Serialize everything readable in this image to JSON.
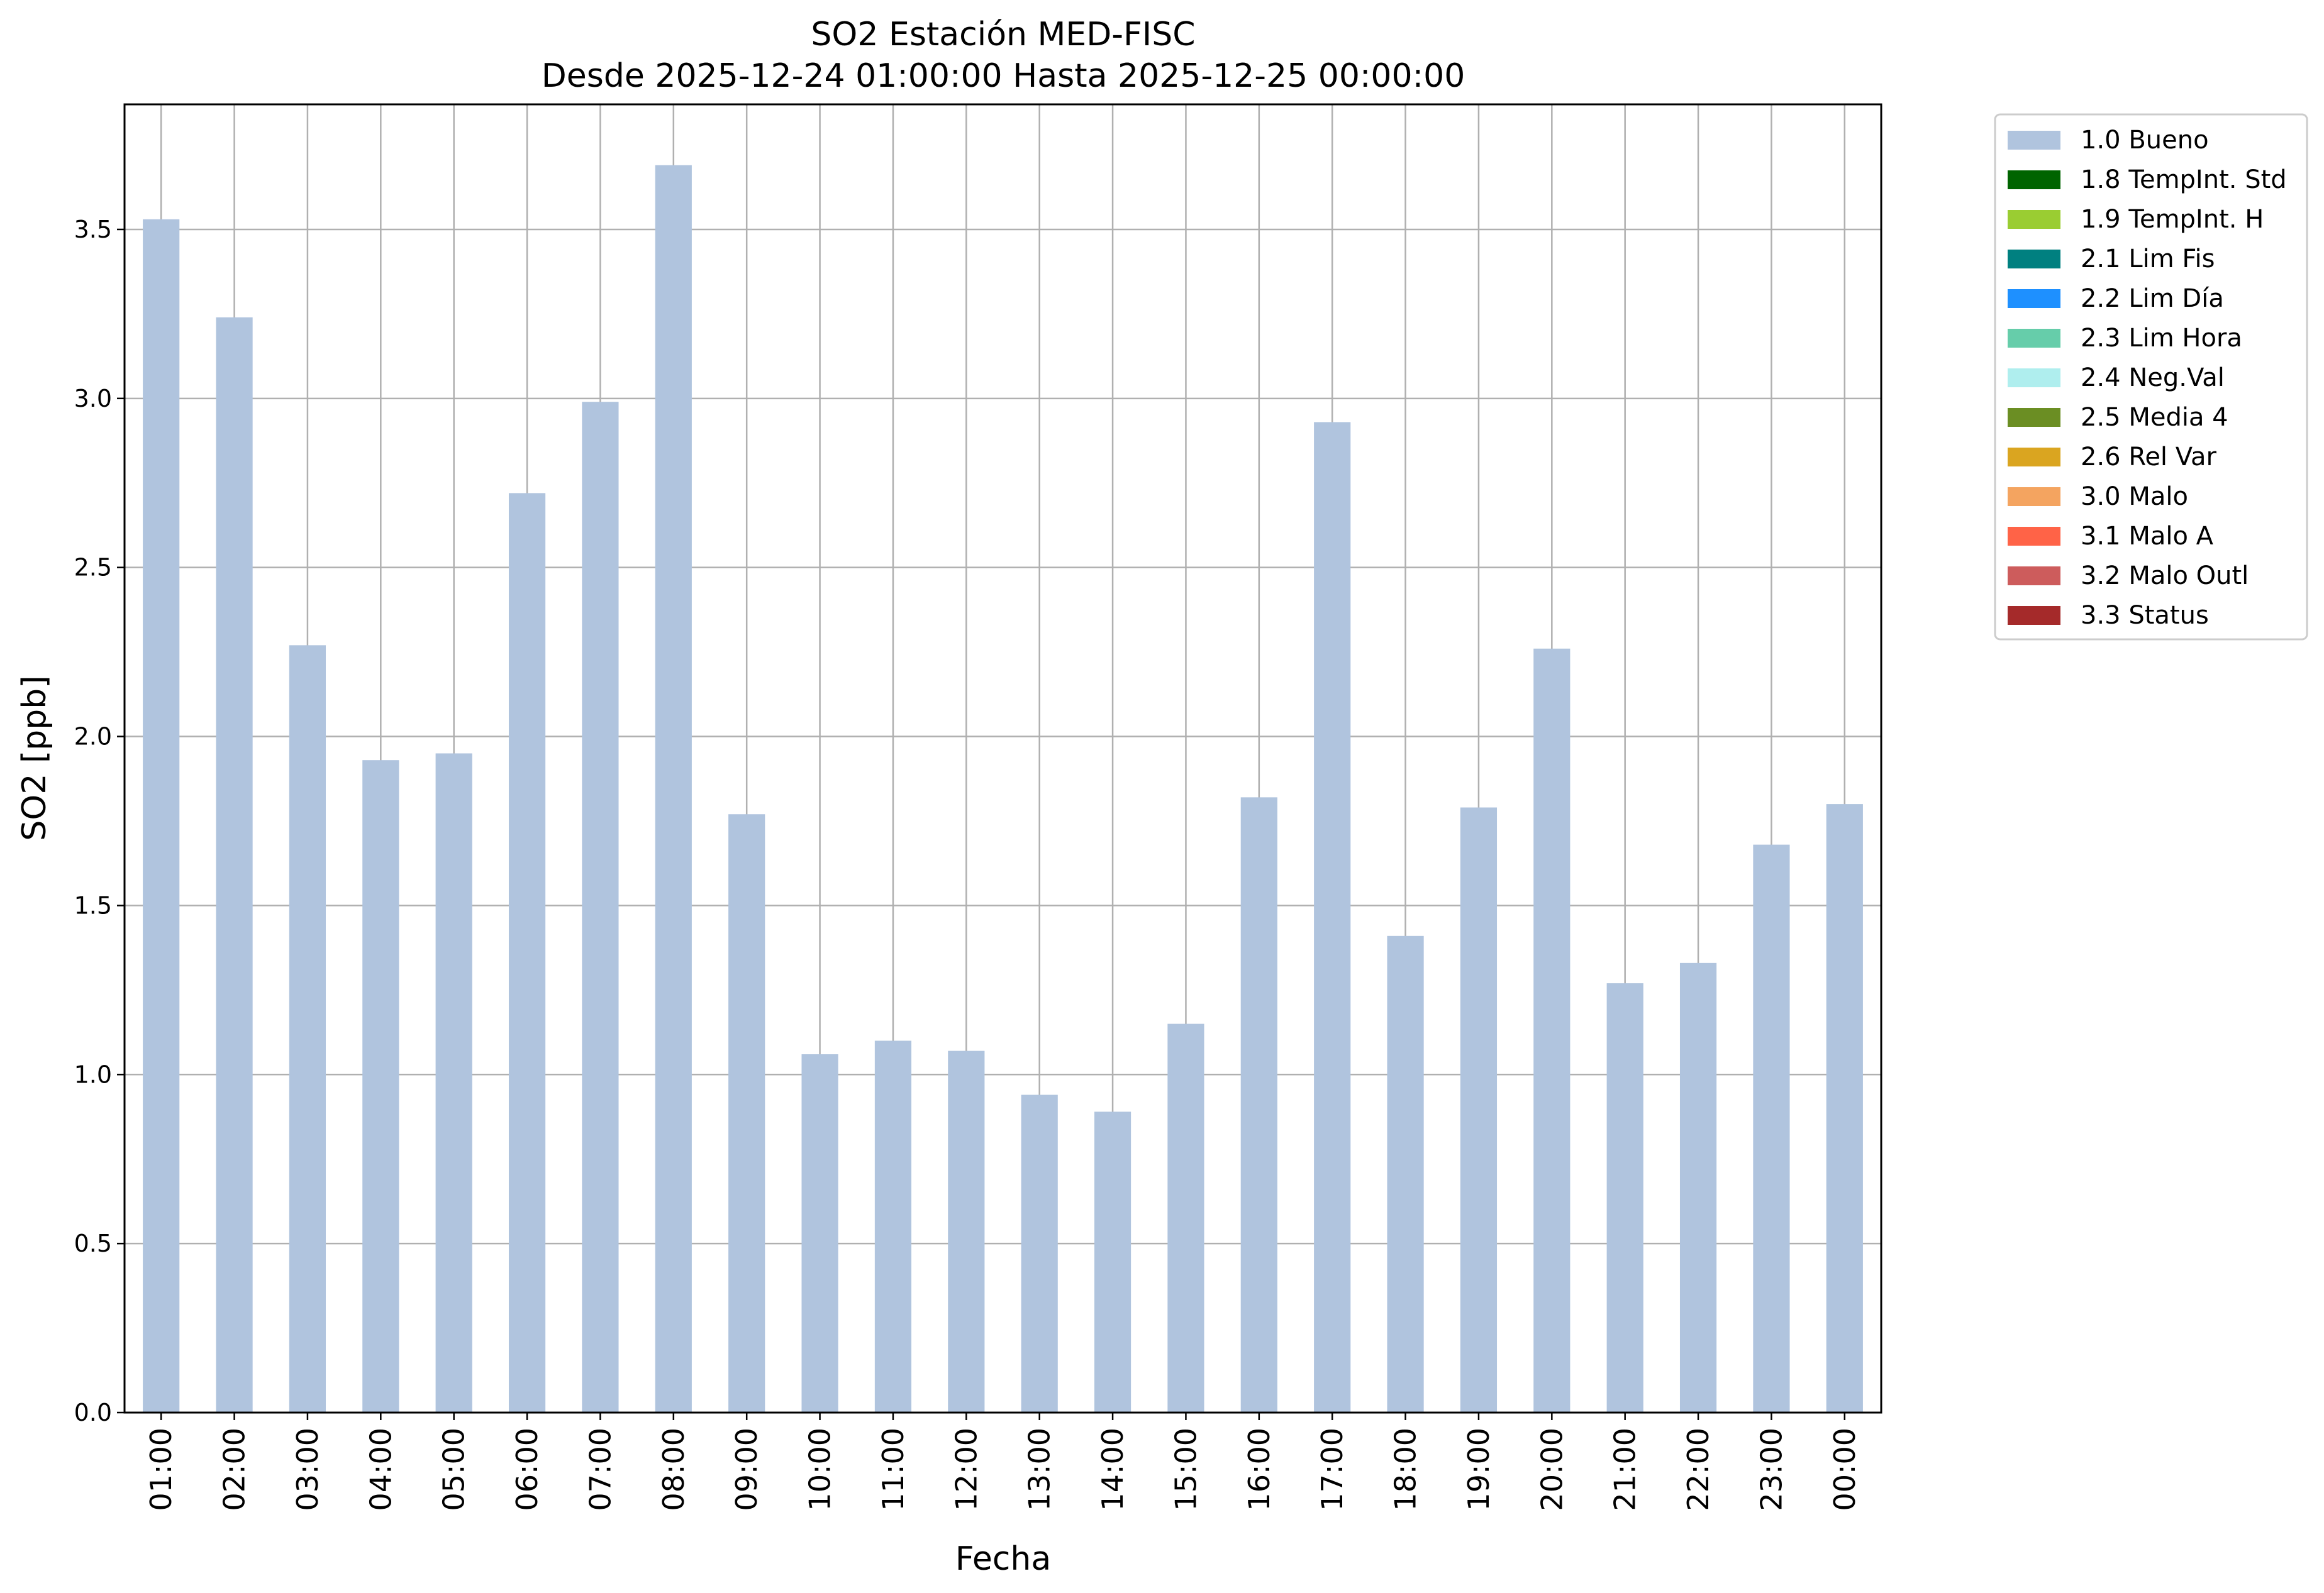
{
  "chart_data": {
    "type": "bar",
    "title": "SO2 Estación MED-FISC",
    "subtitle": "Desde 2025-12-24 01:00:00 Hasta 2025-12-25 00:00:00",
    "xlabel": "Fecha",
    "ylabel": "SO2 [ppb]",
    "ylim": [
      0,
      3.87
    ],
    "yticks": [
      "0.0",
      "0.5",
      "1.0",
      "1.5",
      "2.0",
      "2.5",
      "3.0",
      "3.5"
    ],
    "grid": true,
    "legend_position": "outside-right",
    "categories": [
      "01:00",
      "02:00",
      "03:00",
      "04:00",
      "05:00",
      "06:00",
      "07:00",
      "08:00",
      "09:00",
      "10:00",
      "11:00",
      "12:00",
      "13:00",
      "14:00",
      "15:00",
      "16:00",
      "17:00",
      "18:00",
      "19:00",
      "20:00",
      "21:00",
      "22:00",
      "23:00",
      "00:00"
    ],
    "series": [
      {
        "name": "1.0 Bueno",
        "color": "#b0c4de",
        "values": [
          3.53,
          3.24,
          2.27,
          1.93,
          1.95,
          2.72,
          2.99,
          3.69,
          1.77,
          1.06,
          1.1,
          1.07,
          0.94,
          0.89,
          1.15,
          1.82,
          2.93,
          1.41,
          1.79,
          2.26,
          1.27,
          1.33,
          1.68,
          1.8
        ]
      }
    ],
    "legend": [
      {
        "label": "1.0 Bueno",
        "color": "#b0c4de"
      },
      {
        "label": "1.8 TempInt. Std",
        "color": "#006400"
      },
      {
        "label": "1.9 TempInt. H",
        "color": "#9acd32"
      },
      {
        "label": "2.1 Lim Fis",
        "color": "#008080"
      },
      {
        "label": "2.2 Lim Día",
        "color": "#1e90ff"
      },
      {
        "label": "2.3 Lim Hora",
        "color": "#66cdaa"
      },
      {
        "label": "2.4 Neg.Val",
        "color": "#afeeee"
      },
      {
        "label": "2.5 Media 4",
        "color": "#6b8e23"
      },
      {
        "label": "2.6 Rel Var",
        "color": "#daa520"
      },
      {
        "label": "3.0 Malo",
        "color": "#f4a460"
      },
      {
        "label": "3.1 Malo A",
        "color": "#ff6347"
      },
      {
        "label": "3.2 Malo Outl",
        "color": "#cd5c5c"
      },
      {
        "label": "3.3 Status",
        "color": "#a52a2a"
      }
    ]
  }
}
